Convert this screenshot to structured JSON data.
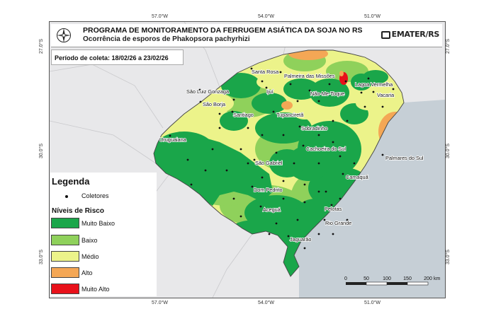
{
  "header": {
    "title": "PROGRAMA DE MONITORAMENTO DA FERRUGEM ASIÁTICA DA SOJA NO RS",
    "subtitle": "Ocorrência de esporos de Phakopsora pachyrhizi",
    "logo_text": "EMATER/RS"
  },
  "period": "Período de coleta: 18/02/26 a 23/02/26",
  "coords": {
    "top_lon": [
      "57.0°W",
      "54.0°W",
      "51.0°W"
    ],
    "bottom_lon": [
      "57.0°W",
      "54.0°W",
      "51.0°W"
    ],
    "left_lat": [
      "27.0°S",
      "30.0°S",
      "33.0°S"
    ],
    "right_lat": [
      "27.0°S",
      "30.0°S",
      "33.0°S"
    ]
  },
  "legend": {
    "title": "Legenda",
    "collectors_label": "Coletores",
    "risk_title": "Níveis de Risco",
    "levels": [
      {
        "label": "Muito Baixo",
        "color": "#1aa64a"
      },
      {
        "label": "Baixo",
        "color": "#8fd15b"
      },
      {
        "label": "Médio",
        "color": "#ecf38a"
      },
      {
        "label": "Alto",
        "color": "#f4a755"
      },
      {
        "label": "Muito Alto",
        "color": "#e8111a"
      }
    ]
  },
  "cities": [
    "Santa Rosa",
    "Palmeira das Missões",
    "Lagoa Vermelha",
    "São Luiz Gonzaga",
    "Ijuí",
    "Não-Me-Toque",
    "Vacaria",
    "São Borja",
    "Santiago",
    "Tupanciretã",
    "Sobradinho",
    "Uruguaiana",
    "Cachoeira do Sul",
    "Palmares do Sul",
    "São Gabriel",
    "Camaquã",
    "Dom Pedrito",
    "Aceguá",
    "Pelotas",
    "Rio Grande",
    "Jaguarão"
  ],
  "scale": {
    "ticks": [
      "0",
      "50",
      "100",
      "150",
      "200"
    ],
    "unit": "km"
  },
  "colors": {
    "ocean": "#c6cfd6",
    "neighbor_land": "#e8e8ea"
  }
}
